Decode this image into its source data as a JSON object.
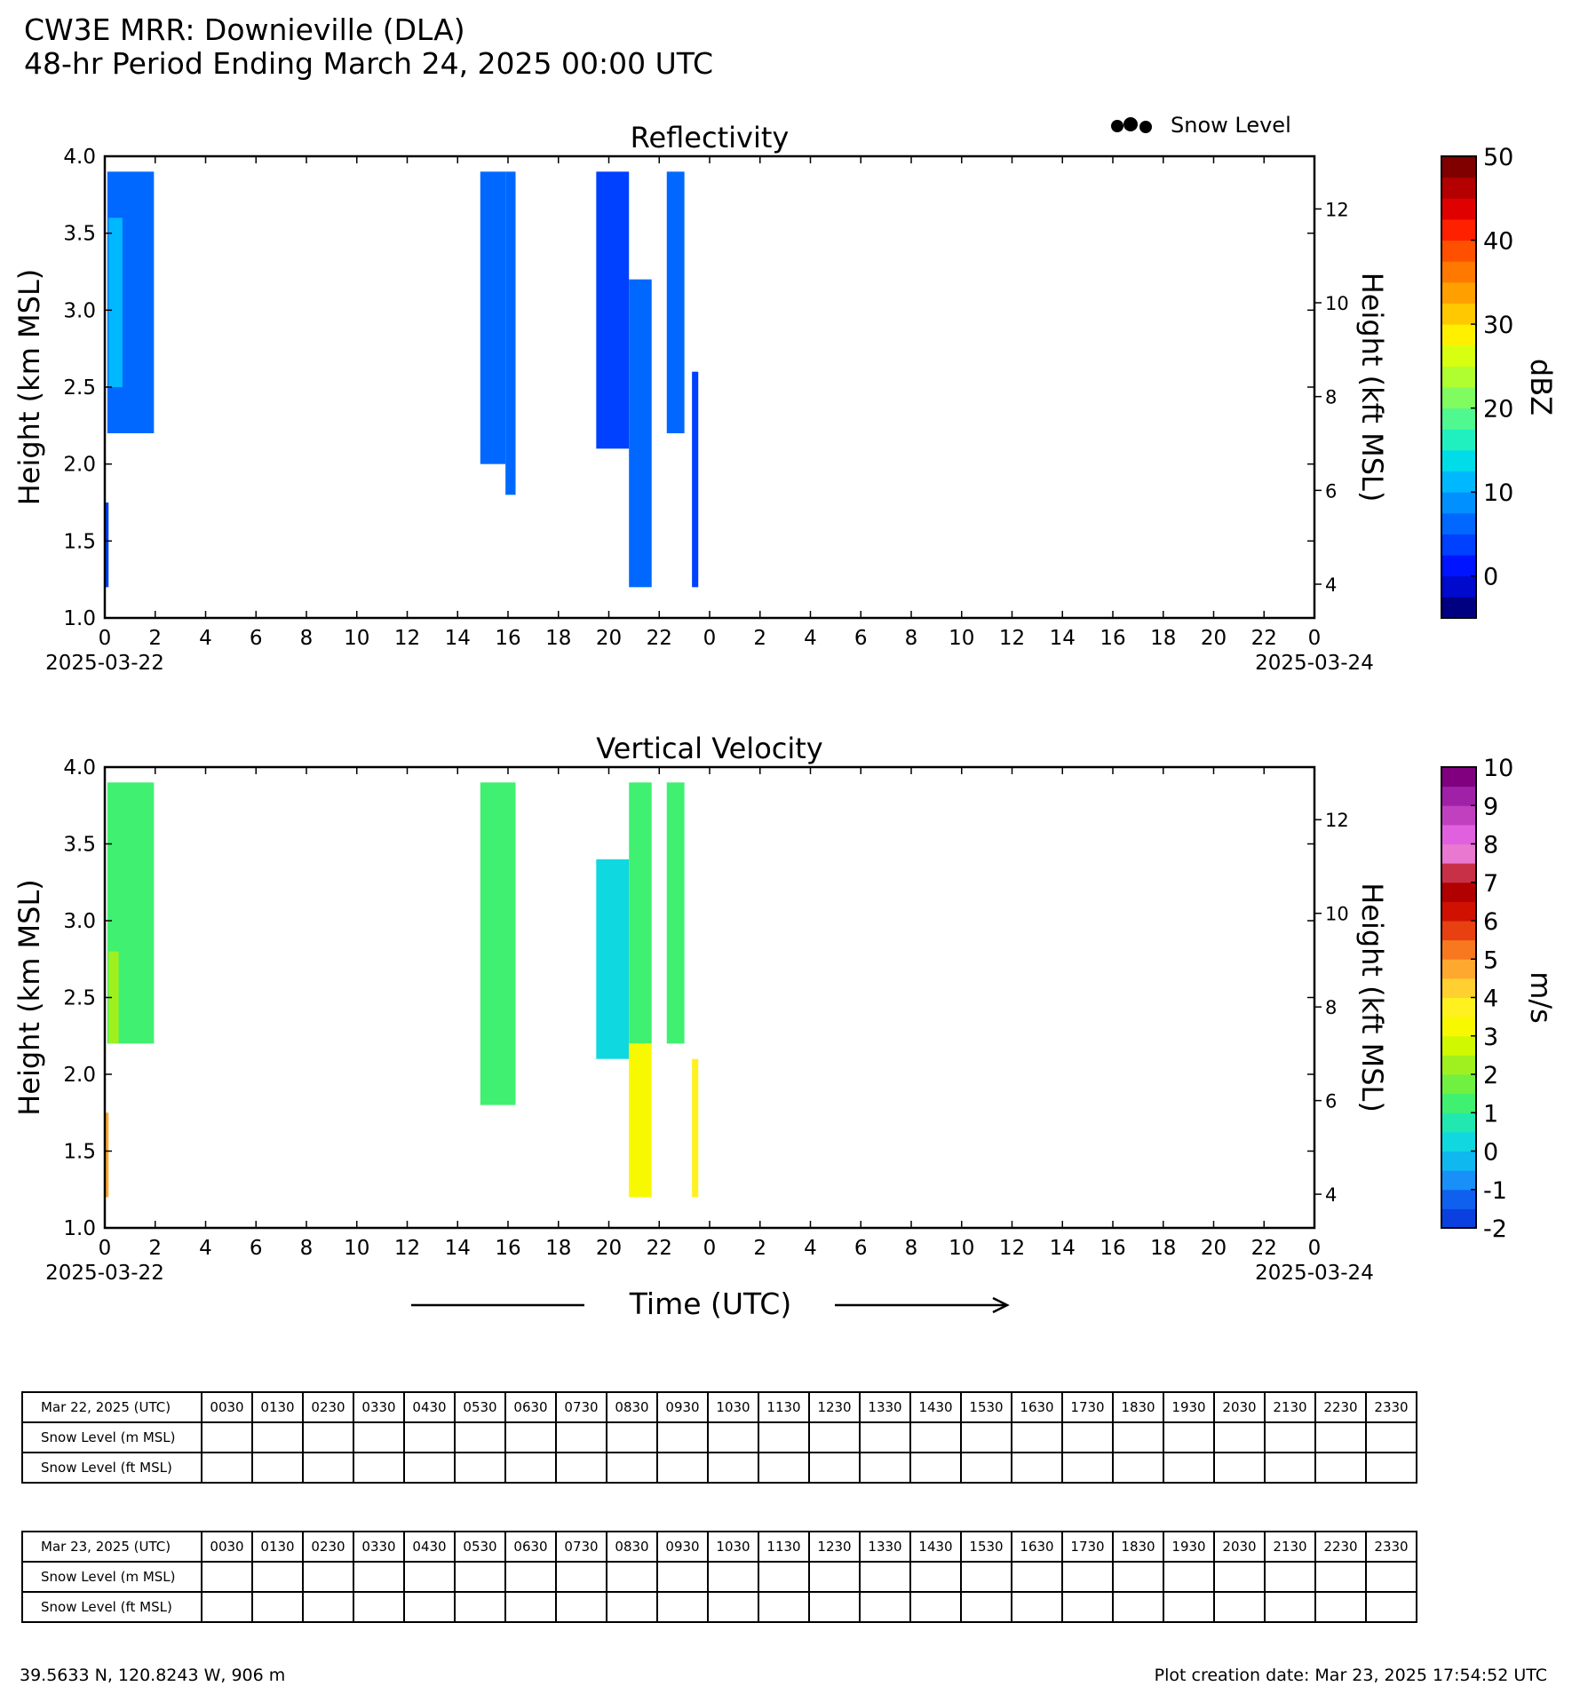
{
  "header": {
    "title": "CW3E MRR: Downieville (DLA)",
    "subtitle": "48-hr Period Ending March 24, 2025 00:00 UTC"
  },
  "legend": {
    "snow_level_label": "Snow Level"
  },
  "x_axis_label": "Time (UTC)",
  "chart_data": [
    {
      "type": "heatmap",
      "title": "Reflectivity",
      "ylabel": "Height (km MSL)",
      "ylabel_right": "Height (kft MSL)",
      "ylim": [
        1.0,
        4.0
      ],
      "yticks": [
        "1.0",
        "1.5",
        "2.0",
        "2.5",
        "3.0",
        "3.5",
        "4.0"
      ],
      "yticks_right": [
        "4",
        "6",
        "8",
        "10",
        "12"
      ],
      "xlim_hours": [
        0,
        48
      ],
      "xticks": [
        "0",
        "2",
        "4",
        "6",
        "8",
        "10",
        "12",
        "14",
        "16",
        "18",
        "20",
        "22",
        "0",
        "2",
        "4",
        "6",
        "8",
        "10",
        "12",
        "14",
        "16",
        "18",
        "20",
        "22",
        "0"
      ],
      "date_start": "2025-03-22",
      "date_end": "2025-03-24",
      "colorbar": {
        "label": "dBZ",
        "range": [
          -5,
          50
        ],
        "ticks": [
          "0",
          "10",
          "20",
          "30",
          "40",
          "50"
        ]
      },
      "echoes": [
        {
          "t_start": 0.0,
          "t_end": 0.15,
          "z_bottom": 1.2,
          "z_top": 1.75,
          "value": 4
        },
        {
          "t_start": 0.1,
          "t_end": 1.95,
          "z_bottom": 2.2,
          "z_top": 3.9,
          "value": 6
        },
        {
          "t_start": 0.15,
          "t_end": 0.7,
          "z_bottom": 2.5,
          "z_top": 3.6,
          "value": 10
        },
        {
          "t_start": 14.9,
          "t_end": 15.9,
          "z_bottom": 2.0,
          "z_top": 3.9,
          "value": 7
        },
        {
          "t_start": 15.9,
          "t_end": 16.3,
          "z_bottom": 1.8,
          "z_top": 3.9,
          "value": 5
        },
        {
          "t_start": 19.5,
          "t_end": 20.8,
          "z_bottom": 2.1,
          "z_top": 3.9,
          "value": 4
        },
        {
          "t_start": 20.8,
          "t_end": 21.7,
          "z_bottom": 1.2,
          "z_top": 3.2,
          "value": 7
        },
        {
          "t_start": 22.3,
          "t_end": 23.0,
          "z_bottom": 2.2,
          "z_top": 3.9,
          "value": 5
        },
        {
          "t_start": 23.3,
          "t_end": 23.55,
          "z_bottom": 1.2,
          "z_top": 2.6,
          "value": 3
        }
      ]
    },
    {
      "type": "heatmap",
      "title": "Vertical Velocity",
      "ylabel": "Height (km MSL)",
      "ylabel_right": "Height (kft MSL)",
      "ylim": [
        1.0,
        4.0
      ],
      "yticks": [
        "1.0",
        "1.5",
        "2.0",
        "2.5",
        "3.0",
        "3.5",
        "4.0"
      ],
      "yticks_right": [
        "4",
        "6",
        "8",
        "10",
        "12"
      ],
      "xlim_hours": [
        0,
        48
      ],
      "xticks": [
        "0",
        "2",
        "4",
        "6",
        "8",
        "10",
        "12",
        "14",
        "16",
        "18",
        "20",
        "22",
        "0",
        "2",
        "4",
        "6",
        "8",
        "10",
        "12",
        "14",
        "16",
        "18",
        "20",
        "22",
        "0"
      ],
      "date_start": "2025-03-22",
      "date_end": "2025-03-24",
      "colorbar": {
        "label": "m/s",
        "range": [
          -2,
          10
        ],
        "ticks": [
          "-2",
          "-1",
          "0",
          "1",
          "2",
          "3",
          "4",
          "5",
          "6",
          "7",
          "8",
          "9",
          "10"
        ]
      },
      "echoes": [
        {
          "t_start": 0.0,
          "t_end": 0.15,
          "z_bottom": 1.2,
          "z_top": 1.75,
          "value": 4.5
        },
        {
          "t_start": 0.1,
          "t_end": 1.95,
          "z_bottom": 2.2,
          "z_top": 3.9,
          "value": 1.2
        },
        {
          "t_start": 0.15,
          "t_end": 0.55,
          "z_bottom": 2.2,
          "z_top": 2.8,
          "value": 2.2
        },
        {
          "t_start": 14.9,
          "t_end": 16.3,
          "z_bottom": 1.8,
          "z_top": 3.9,
          "value": 1.3
        },
        {
          "t_start": 19.5,
          "t_end": 20.8,
          "z_bottom": 2.1,
          "z_top": 3.4,
          "value": 0.3
        },
        {
          "t_start": 20.8,
          "t_end": 21.7,
          "z_bottom": 2.2,
          "z_top": 3.9,
          "value": 1.0
        },
        {
          "t_start": 20.8,
          "t_end": 21.7,
          "z_bottom": 1.2,
          "z_top": 2.2,
          "value": 3.0
        },
        {
          "t_start": 22.3,
          "t_end": 23.0,
          "z_bottom": 2.2,
          "z_top": 3.9,
          "value": 1.2
        },
        {
          "t_start": 23.3,
          "t_end": 23.55,
          "z_bottom": 1.2,
          "z_top": 2.1,
          "value": 3.7
        }
      ]
    }
  ],
  "snow_tables": [
    {
      "header_label": "Mar 22, 2025 (UTC)",
      "row_labels": [
        "Snow Level (m MSL)",
        "Snow Level (ft MSL)"
      ],
      "times": [
        "0030",
        "0130",
        "0230",
        "0330",
        "0430",
        "0530",
        "0630",
        "0730",
        "0830",
        "0930",
        "1030",
        "1130",
        "1230",
        "1330",
        "1430",
        "1530",
        "1630",
        "1730",
        "1830",
        "1930",
        "2030",
        "2130",
        "2230",
        "2330"
      ]
    },
    {
      "header_label": "Mar 23, 2025 (UTC)",
      "row_labels": [
        "Snow Level (m MSL)",
        "Snow Level (ft MSL)"
      ],
      "times": [
        "0030",
        "0130",
        "0230",
        "0330",
        "0430",
        "0530",
        "0630",
        "0730",
        "0830",
        "0930",
        "1030",
        "1130",
        "1230",
        "1330",
        "1430",
        "1530",
        "1630",
        "1730",
        "1830",
        "1930",
        "2030",
        "2130",
        "2230",
        "2330"
      ]
    }
  ],
  "footer": {
    "location": "39.5633 N, 120.8243 W, 906 m",
    "creation": "Plot creation date: Mar 23, 2025 17:54:52 UTC"
  }
}
